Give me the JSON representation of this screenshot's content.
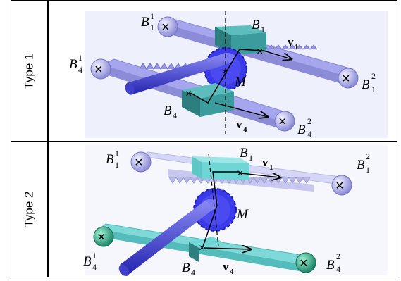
{
  "rows": [
    {
      "label": "Type 1",
      "annotations": {
        "b1_1": {
          "base": "B",
          "sup": "1",
          "sub": "1"
        },
        "b1": {
          "base": "B",
          "sub": "1"
        },
        "v1": {
          "base": "v",
          "sub": "1"
        },
        "b1_2": {
          "base": "B",
          "sup": "2",
          "sub": "1"
        },
        "b4_1": {
          "base": "B",
          "sup": "1",
          "sub": "4"
        },
        "m": {
          "base": "M"
        },
        "b4": {
          "base": "B",
          "sub": "4"
        },
        "v4": {
          "base": "v",
          "sub": "4"
        },
        "b4_2": {
          "base": "B",
          "sup": "2",
          "sub": "4"
        }
      }
    },
    {
      "label": "Type 2",
      "annotations": {
        "b1_1": {
          "base": "B",
          "sup": "1",
          "sub": "1"
        },
        "b1": {
          "base": "B",
          "sub": "1"
        },
        "v1": {
          "base": "v",
          "sub": "1"
        },
        "b1_2": {
          "base": "B",
          "sup": "2",
          "sub": "1"
        },
        "m": {
          "base": "M"
        },
        "b4_1": {
          "base": "B",
          "sup": "1",
          "sub": "4"
        },
        "b4": {
          "base": "B",
          "sub": "4"
        },
        "v4": {
          "base": "v",
          "sub": "4"
        },
        "b4_2": {
          "base": "B",
          "sup": "2",
          "sub": "4"
        }
      }
    }
  ],
  "colors": {
    "rack_type1": "#a6a6ee",
    "rack_type2_top": "#d6d6f6",
    "rack_type2_bottom": "#7fd9d9",
    "block": "#3a9c9c",
    "block_type2": "#6fd6d6",
    "gear": "#3a3ae8",
    "shaft": "#5555dd",
    "ball": "#b8b8f0",
    "ball_type2_bottom": "#3fb08a"
  },
  "icons": [
    "joint-x-icon",
    "gear-icon",
    "shaft-icon",
    "rack-icon",
    "slider-block-icon",
    "velocity-arrow-icon"
  ]
}
